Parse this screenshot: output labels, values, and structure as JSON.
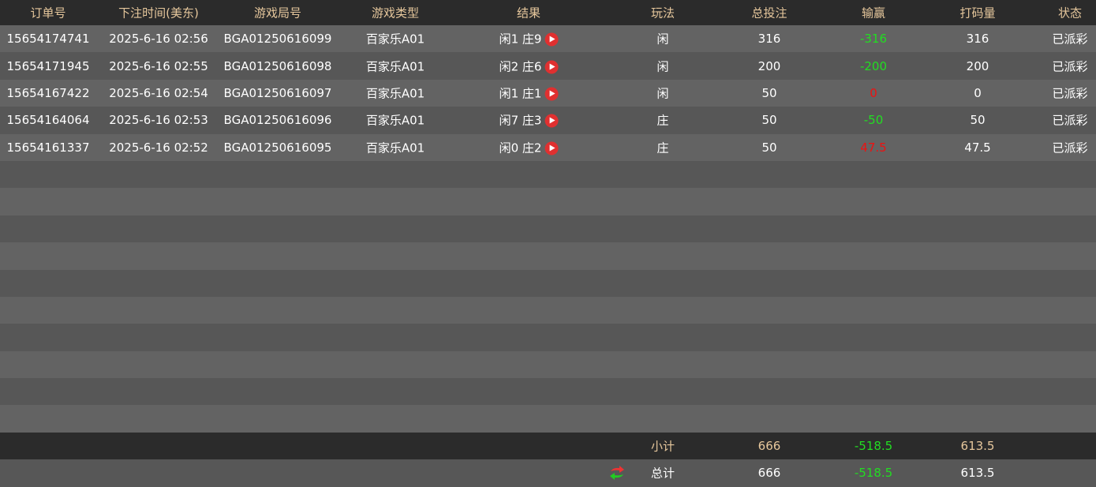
{
  "headers": [
    "订单号",
    "下注时间(美东)",
    "游戏局号",
    "游戏类型",
    "结果",
    "玩法",
    "总投注",
    "输赢",
    "打码量",
    "状态"
  ],
  "rows": [
    {
      "order": "15654174741",
      "time": "2025-6-16 02:56",
      "round": "BGA01250616099",
      "type": "百家乐A01",
      "result": "闲1 庄9",
      "play": "闲",
      "bet": "316",
      "win": "-316",
      "win_color": "green",
      "code": "316",
      "status": "已派彩"
    },
    {
      "order": "15654171945",
      "time": "2025-6-16 02:55",
      "round": "BGA01250616098",
      "type": "百家乐A01",
      "result": "闲2 庄6",
      "play": "闲",
      "bet": "200",
      "win": "-200",
      "win_color": "green",
      "code": "200",
      "status": "已派彩"
    },
    {
      "order": "15654167422",
      "time": "2025-6-16 02:54",
      "round": "BGA01250616097",
      "type": "百家乐A01",
      "result": "闲1 庄1",
      "play": "闲",
      "bet": "50",
      "win": "0",
      "win_color": "red",
      "code": "0",
      "status": "已派彩"
    },
    {
      "order": "15654164064",
      "time": "2025-6-16 02:53",
      "round": "BGA01250616096",
      "type": "百家乐A01",
      "result": "闲7 庄3",
      "play": "庄",
      "bet": "50",
      "win": "-50",
      "win_color": "green",
      "code": "50",
      "status": "已派彩"
    },
    {
      "order": "15654161337",
      "time": "2025-6-16 02:52",
      "round": "BGA01250616095",
      "type": "百家乐A01",
      "result": "闲0 庄2",
      "play": "庄",
      "bet": "50",
      "win": "47.5",
      "win_color": "red",
      "code": "47.5",
      "status": "已派彩"
    }
  ],
  "subtotal": {
    "label": "小计",
    "bet": "666",
    "win": "-518.5",
    "code": "613.5"
  },
  "total": {
    "label": "总计",
    "bet": "666",
    "win": "-518.5",
    "code": "613.5"
  },
  "colors": {
    "header_text": "#e6c79c",
    "loss": "#22dd22",
    "win": "#ee1111",
    "play_icon": "#e03030"
  }
}
